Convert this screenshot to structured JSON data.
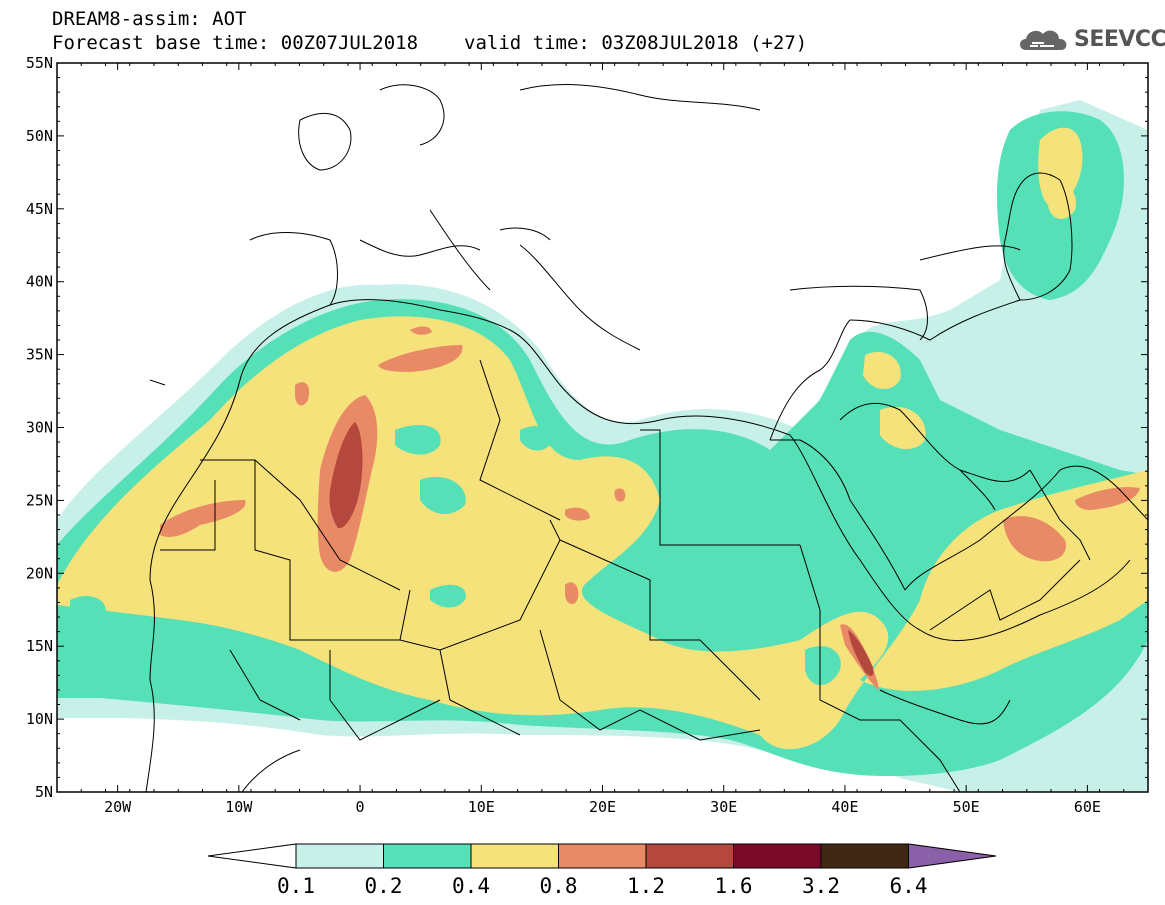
{
  "header": {
    "title": "DREAM8-assim: AOT",
    "base_time": "Forecast base time: 00Z07JUL2018",
    "valid_time": "valid time: 03Z08JUL2018 (+27)"
  },
  "logo": {
    "text": "SEEVCCC",
    "icon": "cloud-icon"
  },
  "map": {
    "lon_range": [
      -25,
      65
    ],
    "lat_range": [
      5,
      55
    ],
    "lat_ticks": [
      "5N",
      "10N",
      "15N",
      "20N",
      "25N",
      "30N",
      "35N",
      "40N",
      "45N",
      "50N",
      "55N"
    ],
    "lon_ticks": [
      "20W",
      "10W",
      "0",
      "10E",
      "20E",
      "30E",
      "40E",
      "50E",
      "60E"
    ]
  },
  "legend": {
    "thresholds": [
      "0.1",
      "0.2",
      "0.4",
      "0.8",
      "1.2",
      "1.6",
      "3.2",
      "6.4"
    ],
    "colors": [
      "#ffffff",
      "#c6f0e8",
      "#55e0b8",
      "#f5e27a",
      "#e98a66",
      "#b4483e",
      "#7a0a2a",
      "#3e2814",
      "#8a60a8"
    ]
  }
}
